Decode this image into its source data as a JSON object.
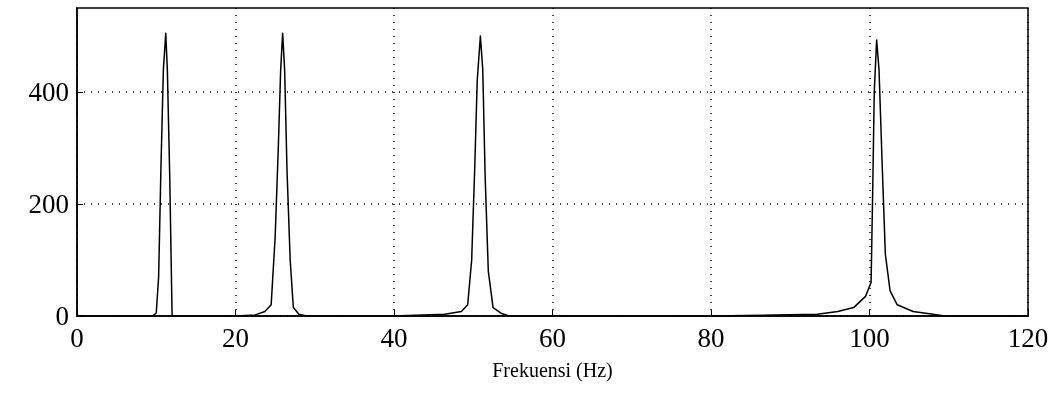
{
  "chart_data": {
    "type": "line",
    "xlabel": "Frekuensi (Hz)",
    "x": [
      0,
      9.5,
      10.0,
      10.3,
      10.6,
      10.9,
      11.2,
      11.4,
      11.7,
      12.0,
      12.3,
      20,
      22.5,
      23.7,
      24.5,
      25.0,
      25.4,
      25.7,
      25.95,
      26.2,
      26.5,
      26.9,
      27.3,
      28,
      29,
      40,
      46.4,
      48.5,
      49.3,
      49.8,
      50.2,
      50.5,
      50.9,
      51.2,
      51.5,
      51.9,
      52.5,
      53.5,
      54.5,
      80,
      93.4,
      96,
      98,
      99.5,
      100.2,
      100.4,
      100.6,
      100.9,
      101.2,
      101.6,
      102,
      102.6,
      103.5,
      105.5,
      108,
      109.5,
      120
    ],
    "series": [
      {
        "color": "#000000",
        "values": [
          0,
          0,
          5,
          70,
          270,
          440,
          505,
          440,
          250,
          0,
          0,
          0,
          2,
          8,
          20,
          140,
          300,
          440,
          505,
          440,
          260,
          100,
          15,
          3,
          0,
          0,
          3,
          8,
          20,
          100,
          270,
          420,
          500,
          440,
          250,
          80,
          15,
          5,
          0,
          0,
          3,
          8,
          15,
          35,
          60,
          220,
          400,
          493,
          440,
          270,
          110,
          45,
          20,
          8,
          3,
          0,
          0
        ]
      }
    ],
    "xlim": [
      0,
      120
    ],
    "xticks": [
      0,
      20,
      40,
      60,
      80,
      100,
      120
    ],
    "ylim": [
      0,
      550
    ],
    "yticks": [
      0,
      200,
      400
    ],
    "grid": true,
    "marker": "none",
    "line_style": "solid"
  }
}
